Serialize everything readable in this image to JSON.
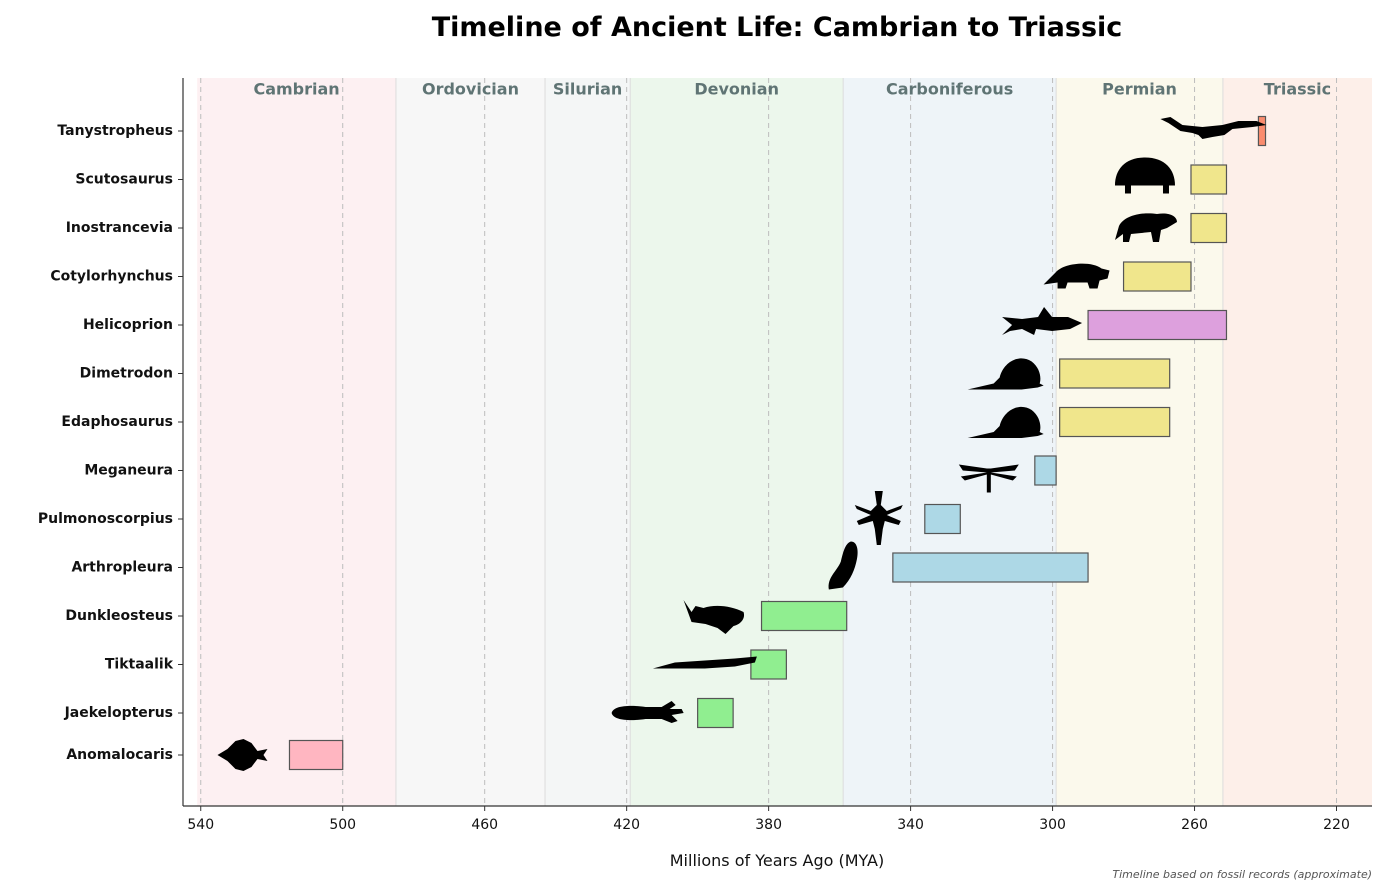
{
  "chart_data": {
    "type": "timeline",
    "title": "Timeline of Ancient Life: Cambrian to Triassic",
    "xlabel": "Millions of Years Ago (MYA)",
    "xlim": [
      545,
      210
    ],
    "xticks": [
      540,
      500,
      460,
      420,
      380,
      340,
      300,
      260,
      220
    ],
    "periods": [
      {
        "name": "Cambrian",
        "start": 541,
        "end": 485,
        "color": "#fdf0f2"
      },
      {
        "name": "Ordovician",
        "start": 485,
        "end": 443,
        "color": "#f7f7f7"
      },
      {
        "name": "Silurian",
        "start": 443,
        "end": 419,
        "color": "#f4f6f6"
      },
      {
        "name": "Devonian",
        "start": 419,
        "end": 359,
        "color": "#ecf7ec"
      },
      {
        "name": "Carboniferous",
        "start": 359,
        "end": 299,
        "color": "#eef4f8"
      },
      {
        "name": "Permian",
        "start": 299,
        "end": 252,
        "color": "#fbf9ec"
      },
      {
        "name": "Triassic",
        "start": 252,
        "end": 201,
        "color": "#fdefe9"
      }
    ],
    "organisms": [
      {
        "name": "Tanystropheus",
        "start": 242,
        "end": 240,
        "color": "#fa8c6e",
        "icon": "long-neck-reptile-icon"
      },
      {
        "name": "Scutosaurus",
        "start": 261,
        "end": 251,
        "color": "#f0e68c",
        "icon": "armored-reptile-icon"
      },
      {
        "name": "Inostrancevia",
        "start": 261,
        "end": 251,
        "color": "#f0e68c",
        "icon": "gorgonopsid-icon"
      },
      {
        "name": "Cotylorhynchus",
        "start": 280,
        "end": 261,
        "color": "#f0e68c",
        "icon": "caseid-icon"
      },
      {
        "name": "Helicoprion",
        "start": 290,
        "end": 251,
        "color": "#dda0dd",
        "icon": "shark-icon"
      },
      {
        "name": "Dimetrodon",
        "start": 298,
        "end": 267,
        "color": "#f0e68c",
        "icon": "sail-back-reptile-icon"
      },
      {
        "name": "Edaphosaurus",
        "start": 298,
        "end": 267,
        "color": "#f0e68c",
        "icon": "sail-back-reptile-icon"
      },
      {
        "name": "Meganeura",
        "start": 305,
        "end": 299,
        "color": "#add8e6",
        "icon": "dragonfly-icon"
      },
      {
        "name": "Pulmonoscorpius",
        "start": 336,
        "end": 326,
        "color": "#add8e6",
        "icon": "scorpion-icon"
      },
      {
        "name": "Arthropleura",
        "start": 345,
        "end": 290,
        "color": "#add8e6",
        "icon": "millipede-icon"
      },
      {
        "name": "Dunkleosteus",
        "start": 382,
        "end": 358,
        "color": "#90ee90",
        "icon": "armored-fish-icon"
      },
      {
        "name": "Tiktaalik",
        "start": 385,
        "end": 375,
        "color": "#90ee90",
        "icon": "fish-tetrapod-icon"
      },
      {
        "name": "Jaekelopterus",
        "start": 400,
        "end": 390,
        "color": "#90ee90",
        "icon": "sea-scorpion-icon"
      },
      {
        "name": "Anomalocaris",
        "start": 515,
        "end": 500,
        "color": "#ffb6c1",
        "icon": "anomalocaris-icon"
      }
    ],
    "grid": "vertical dashed at ticks",
    "legend": "none"
  },
  "footnote": "Timeline based on fossil records (approximate)"
}
